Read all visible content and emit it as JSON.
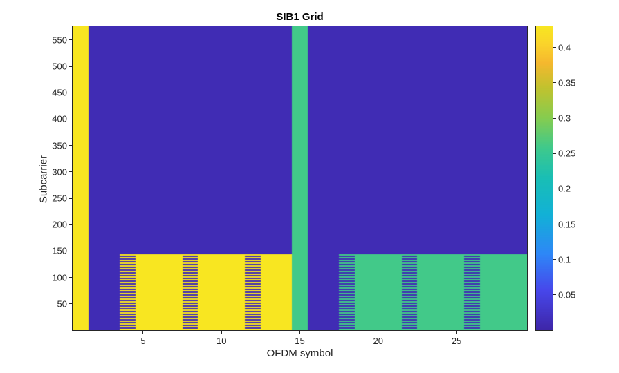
{
  "figure": {
    "background_color": "#ffffff",
    "axes_text_color": "#262626"
  },
  "chart_data": {
    "type": "heatmap",
    "title": "SIB1 Grid",
    "xlabel": "OFDM symbol",
    "ylabel": "Subcarrier",
    "n_symbols": 29,
    "n_subcarriers": 576,
    "x_ticks": [
      5,
      10,
      15,
      20,
      25
    ],
    "y_ticks": [
      50,
      100,
      150,
      200,
      250,
      300,
      350,
      400,
      450,
      500,
      550
    ],
    "colorbar_ticks": [
      0.05,
      0.1,
      0.15,
      0.2,
      0.25,
      0.3,
      0.35,
      0.4
    ],
    "value_range": [
      0,
      0.43
    ],
    "background_value": 0.01,
    "colormap": {
      "name": "parula",
      "stops": [
        [
          0.0,
          "#3E26A8"
        ],
        [
          0.13,
          "#4747EB"
        ],
        [
          0.25,
          "#2E87F7"
        ],
        [
          0.38,
          "#12B1D6"
        ],
        [
          0.5,
          "#19BEB5"
        ],
        [
          0.6,
          "#3FC98C"
        ],
        [
          0.7,
          "#87CC4F"
        ],
        [
          0.8,
          "#C2C22E"
        ],
        [
          0.88,
          "#F5B82E"
        ],
        [
          0.94,
          "#FAD32B"
        ],
        [
          1.0,
          "#F8E621"
        ]
      ]
    },
    "regions": [
      {
        "name": "full-height-column-left",
        "symbols": [
          1,
          1
        ],
        "subcarriers": [
          1,
          576
        ],
        "value": 0.43,
        "pattern": "solid"
      },
      {
        "name": "lower-block-left",
        "symbols": [
          4,
          14
        ],
        "subcarriers": [
          1,
          144
        ],
        "value": 0.43,
        "pattern": "solid"
      },
      {
        "name": "striped-column",
        "symbols": [
          4,
          4
        ],
        "subcarriers": [
          1,
          144
        ],
        "value": 0.43,
        "pattern": "striped"
      },
      {
        "name": "striped-column",
        "symbols": [
          8,
          8
        ],
        "subcarriers": [
          1,
          144
        ],
        "value": 0.43,
        "pattern": "striped"
      },
      {
        "name": "striped-column",
        "symbols": [
          12,
          12
        ],
        "subcarriers": [
          1,
          144
        ],
        "value": 0.43,
        "pattern": "striped"
      },
      {
        "name": "full-height-column-mid",
        "symbols": [
          15,
          15
        ],
        "subcarriers": [
          1,
          576
        ],
        "value": 0.26,
        "pattern": "solid"
      },
      {
        "name": "lower-block-right",
        "symbols": [
          18,
          29
        ],
        "subcarriers": [
          1,
          144
        ],
        "value": 0.26,
        "pattern": "solid"
      },
      {
        "name": "striped-column",
        "symbols": [
          18,
          18
        ],
        "subcarriers": [
          1,
          144
        ],
        "value": 0.26,
        "pattern": "striped"
      },
      {
        "name": "striped-column",
        "symbols": [
          22,
          22
        ],
        "subcarriers": [
          1,
          144
        ],
        "value": 0.26,
        "pattern": "striped"
      },
      {
        "name": "striped-column",
        "symbols": [
          26,
          26
        ],
        "subcarriers": [
          1,
          144
        ],
        "value": 0.26,
        "pattern": "striped"
      }
    ]
  }
}
